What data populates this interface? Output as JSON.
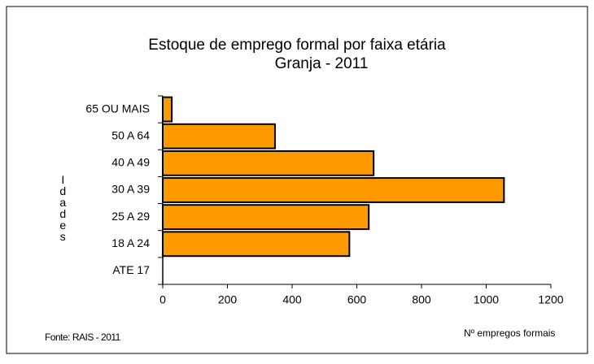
{
  "chart_data": {
    "type": "bar",
    "orientation": "horizontal",
    "title": "Estoque de emprego formal por faixa etária",
    "subtitle": "Granja - 2011",
    "y_label": "Idades",
    "x_label": "Nº empregos formais",
    "source": "Fonte: RAIS - 2011",
    "categories": [
      "65 OU MAIS",
      "50 A 64",
      "40 A 49",
      "30 A 39",
      "25 A 29",
      "18 A 24",
      "ATE 17"
    ],
    "values": [
      28,
      347,
      652,
      1055,
      637,
      577,
      0
    ],
    "color": "#ff9900",
    "xlim": [
      0,
      1200
    ],
    "xticks": [
      0,
      200,
      400,
      600,
      800,
      1000,
      1200
    ]
  }
}
